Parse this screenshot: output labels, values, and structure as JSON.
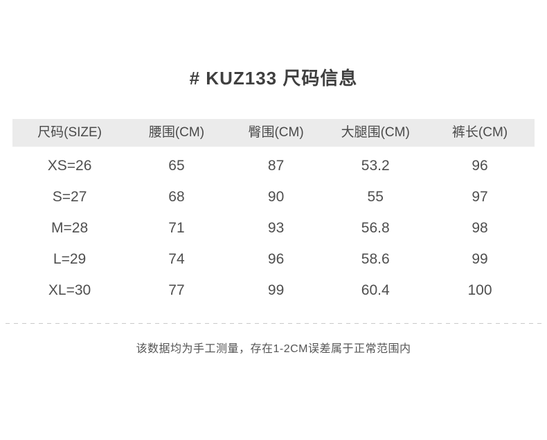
{
  "chart_data": {
    "type": "table",
    "title": "# KUZ133 尺码信息",
    "columns": [
      "尺码(SIZE)",
      "腰围(CM)",
      "臀围(CM)",
      "大腿围(CM)",
      "裤长(CM)"
    ],
    "rows": [
      [
        "XS=26",
        "65",
        "87",
        "53.2",
        "96"
      ],
      [
        "S=27",
        "68",
        "90",
        "55",
        "97"
      ],
      [
        "M=28",
        "71",
        "93",
        "56.8",
        "98"
      ],
      [
        "L=29",
        "74",
        "96",
        "58.6",
        "99"
      ],
      [
        "XL=30",
        "77",
        "99",
        "60.4",
        "100"
      ]
    ],
    "note": "该数据均为手工测量，存在1-2CM误差属于正常范围内",
    "legend_position": "none",
    "grid": false
  },
  "colors": {
    "page_background": "#ffffff",
    "title_text": "#3f3f3f",
    "header_background": "#ebebeb",
    "header_text": "#4a4a4a",
    "cell_text": "#4f4f4f",
    "divider": "#c9c9c9",
    "note_text": "#555555"
  }
}
